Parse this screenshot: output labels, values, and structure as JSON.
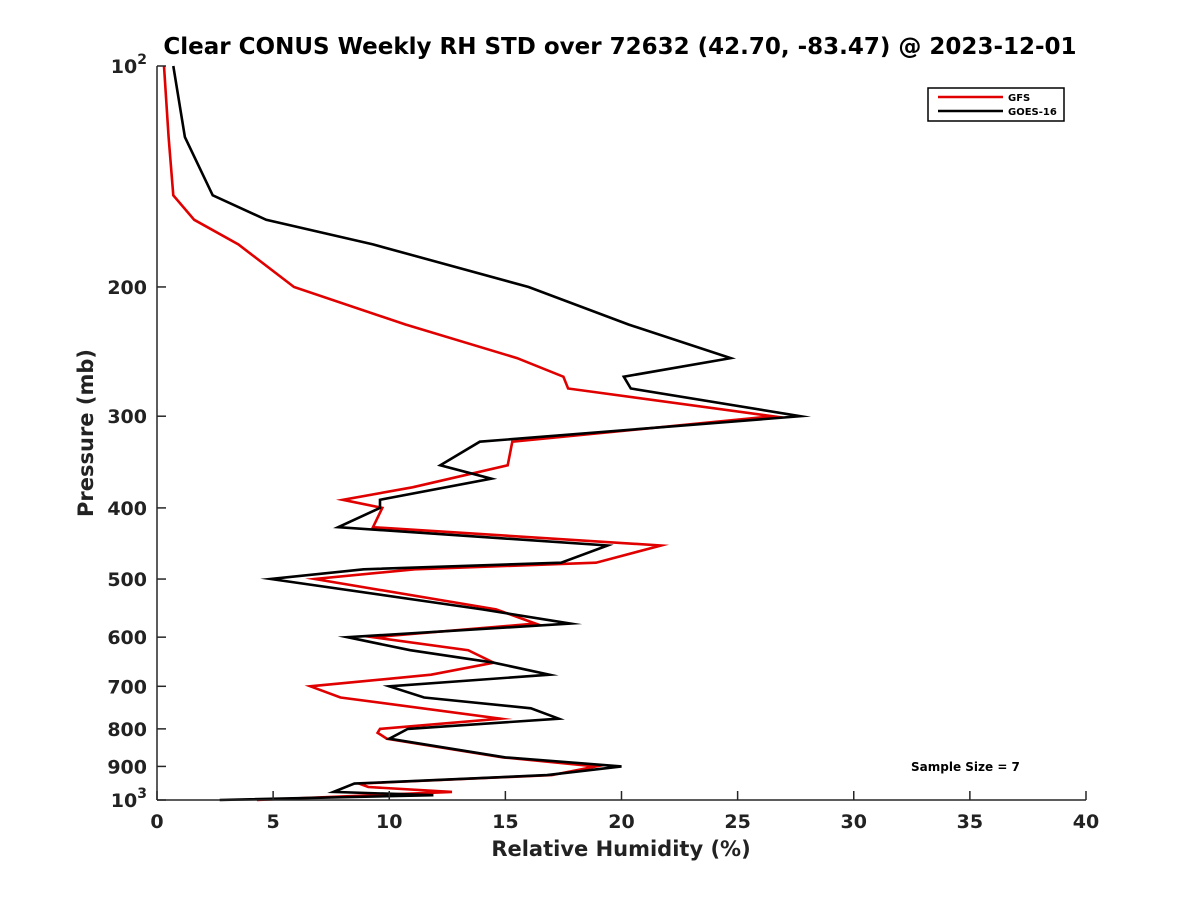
{
  "chart_data": {
    "type": "line",
    "title": "Clear CONUS Weekly RH STD over 72632 (42.70, -83.47) @ 2023-12-01",
    "xlabel": "Relative Humidity (%)",
    "ylabel": "Pressure (mb)",
    "xlim": [
      0,
      40
    ],
    "ylim": [
      100,
      1000
    ],
    "y_scale": "log",
    "y_reversed": true,
    "x_ticks": [
      0,
      5,
      10,
      15,
      20,
      25,
      30,
      35,
      40
    ],
    "y_ticks": [
      {
        "value": 100,
        "label": "10",
        "sup": "2"
      },
      {
        "value": 200,
        "label": "200"
      },
      {
        "value": 300,
        "label": "300"
      },
      {
        "value": 400,
        "label": "400"
      },
      {
        "value": 500,
        "label": "500"
      },
      {
        "value": 600,
        "label": "600"
      },
      {
        "value": 700,
        "label": "700"
      },
      {
        "value": 800,
        "label": "800"
      },
      {
        "value": 900,
        "label": "900"
      },
      {
        "value": 1000,
        "label": "10",
        "sup": "3"
      }
    ],
    "grid": false,
    "legend_position": "top-right",
    "annotation": "Sample Size = 7",
    "series": [
      {
        "name": "GFS",
        "color": "#e00000",
        "points": [
          {
            "p": 100,
            "rh": 0.3
          },
          {
            "p": 125,
            "rh": 0.5
          },
          {
            "p": 150,
            "rh": 0.7
          },
          {
            "p": 162,
            "rh": 1.6
          },
          {
            "p": 175,
            "rh": 3.5
          },
          {
            "p": 200,
            "rh": 5.9
          },
          {
            "p": 225,
            "rh": 10.7
          },
          {
            "p": 250,
            "rh": 15.5
          },
          {
            "p": 265,
            "rh": 17.5
          },
          {
            "p": 275,
            "rh": 17.7
          },
          {
            "p": 300,
            "rh": 26.5
          },
          {
            "p": 325,
            "rh": 15.3
          },
          {
            "p": 350,
            "rh": 15.1
          },
          {
            "p": 375,
            "rh": 11.0
          },
          {
            "p": 390,
            "rh": 8.0
          },
          {
            "p": 400,
            "rh": 9.7
          },
          {
            "p": 425,
            "rh": 9.3
          },
          {
            "p": 450,
            "rh": 21.7
          },
          {
            "p": 475,
            "rh": 18.9
          },
          {
            "p": 485,
            "rh": 11.1
          },
          {
            "p": 500,
            "rh": 6.8
          },
          {
            "p": 550,
            "rh": 14.6
          },
          {
            "p": 575,
            "rh": 16.3
          },
          {
            "p": 600,
            "rh": 9.3
          },
          {
            "p": 625,
            "rh": 13.4
          },
          {
            "p": 650,
            "rh": 14.5
          },
          {
            "p": 675,
            "rh": 11.8
          },
          {
            "p": 700,
            "rh": 6.6
          },
          {
            "p": 725,
            "rh": 7.9
          },
          {
            "p": 775,
            "rh": 14.8
          },
          {
            "p": 800,
            "rh": 9.6
          },
          {
            "p": 810,
            "rh": 9.5
          },
          {
            "p": 825,
            "rh": 9.9
          },
          {
            "p": 875,
            "rh": 14.9
          },
          {
            "p": 900,
            "rh": 18.9
          },
          {
            "p": 925,
            "rh": 17.0
          },
          {
            "p": 950,
            "rh": 8.7
          },
          {
            "p": 960,
            "rh": 9.1
          },
          {
            "p": 975,
            "rh": 12.7
          },
          {
            "p": 1000,
            "rh": 4.3
          }
        ]
      },
      {
        "name": "GOES-16",
        "color": "#000000",
        "points": [
          {
            "p": 100,
            "rh": 0.7
          },
          {
            "p": 125,
            "rh": 1.2
          },
          {
            "p": 150,
            "rh": 2.4
          },
          {
            "p": 162,
            "rh": 4.7
          },
          {
            "p": 175,
            "rh": 9.3
          },
          {
            "p": 200,
            "rh": 16.0
          },
          {
            "p": 225,
            "rh": 20.3
          },
          {
            "p": 250,
            "rh": 24.7
          },
          {
            "p": 265,
            "rh": 20.1
          },
          {
            "p": 275,
            "rh": 20.4
          },
          {
            "p": 300,
            "rh": 27.7
          },
          {
            "p": 325,
            "rh": 13.9
          },
          {
            "p": 350,
            "rh": 12.2
          },
          {
            "p": 365,
            "rh": 14.4
          },
          {
            "p": 390,
            "rh": 9.6
          },
          {
            "p": 400,
            "rh": 9.6
          },
          {
            "p": 425,
            "rh": 7.8
          },
          {
            "p": 450,
            "rh": 19.4
          },
          {
            "p": 475,
            "rh": 17.4
          },
          {
            "p": 485,
            "rh": 8.9
          },
          {
            "p": 500,
            "rh": 4.9
          },
          {
            "p": 550,
            "rh": 14.0
          },
          {
            "p": 575,
            "rh": 17.8
          },
          {
            "p": 600,
            "rh": 8.2
          },
          {
            "p": 625,
            "rh": 10.9
          },
          {
            "p": 650,
            "rh": 14.5
          },
          {
            "p": 675,
            "rh": 16.9
          },
          {
            "p": 700,
            "rh": 10.0
          },
          {
            "p": 725,
            "rh": 11.5
          },
          {
            "p": 750,
            "rh": 16.1
          },
          {
            "p": 775,
            "rh": 17.3
          },
          {
            "p": 800,
            "rh": 10.8
          },
          {
            "p": 825,
            "rh": 10.0
          },
          {
            "p": 875,
            "rh": 15.0
          },
          {
            "p": 900,
            "rh": 20.0
          },
          {
            "p": 925,
            "rh": 16.8
          },
          {
            "p": 950,
            "rh": 8.5
          },
          {
            "p": 975,
            "rh": 7.6
          },
          {
            "p": 985,
            "rh": 11.9
          },
          {
            "p": 1000,
            "rh": 2.7
          }
        ]
      }
    ]
  }
}
